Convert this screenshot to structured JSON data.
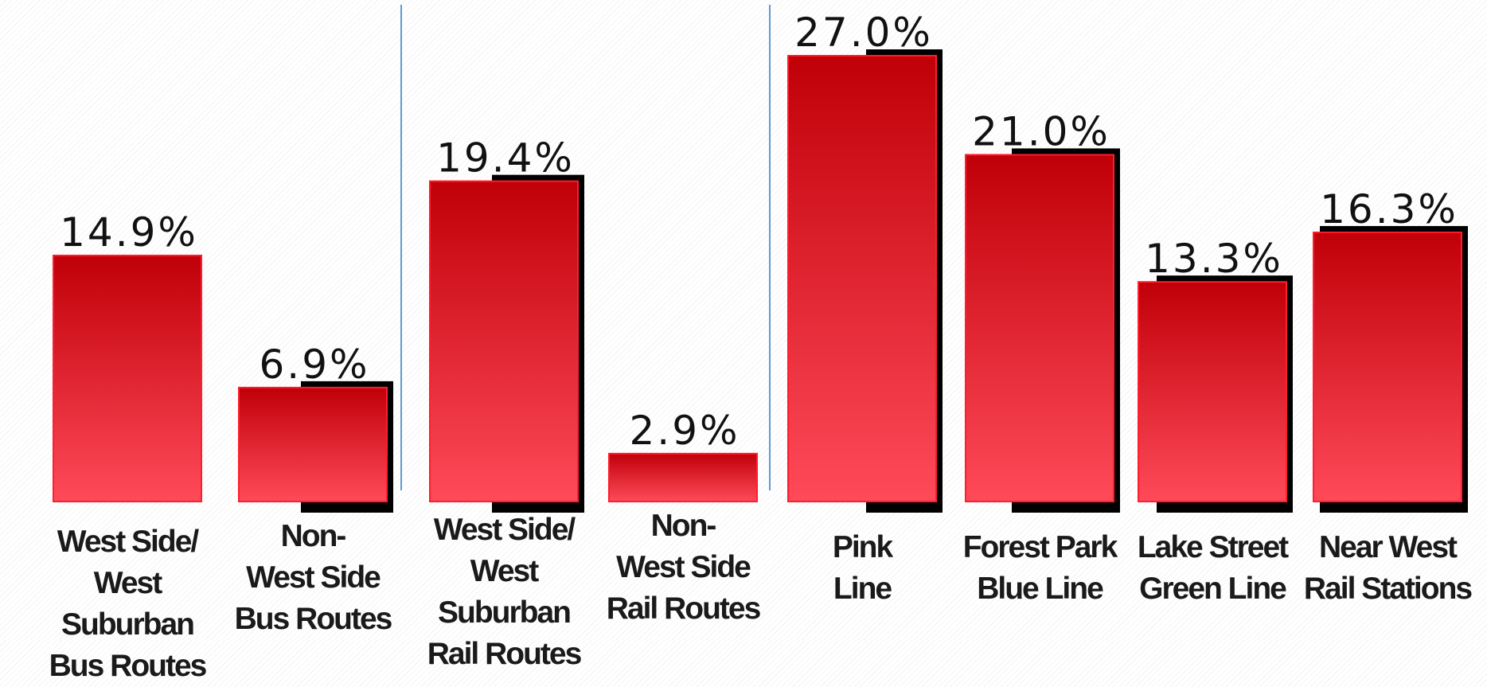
{
  "chart_data": {
    "type": "bar",
    "categories": [
      "West  Side/\nWest Suburban\nBus Routes",
      "Non-\nWest Side\nBus Routes",
      "West  Side/\nWest Suburban\nRail  Routes",
      "Non-\nWest Side\nRail  Routes",
      "Pink\nLine",
      "Forest Park\nBlue Line",
      "Lake Street\nGreen Line",
      "Near West\nRail Stations"
    ],
    "values": [
      14.9,
      6.9,
      19.4,
      2.9,
      27.0,
      21.0,
      13.3,
      16.3
    ],
    "value_labels": [
      "14.9%",
      "6.9%",
      "19.4%",
      "2.9%",
      "27.0%",
      "21.0%",
      "13.3%",
      "16.3%"
    ],
    "unit": "%",
    "ylim": [
      0,
      27.0
    ],
    "grid": false,
    "legend": "none",
    "colors": {
      "bar_top": "#c00008",
      "bar_bottom": "#ff4a5a",
      "bar_edge": "#ff1d2e",
      "divider": "#5b9bd5",
      "shadow": "#000000",
      "value_text": "#111111",
      "category_text": "#1a1a1a"
    }
  }
}
